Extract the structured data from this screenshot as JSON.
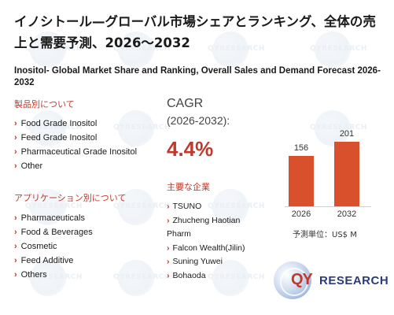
{
  "title": "イノシトール—グローバル市場シェアとランキング、全体の売上と需要予測、2026～2032",
  "subtitle": "Inositol- Global Market Share and Ranking, Overall Sales and Demand Forecast 2026-2032",
  "product_section": {
    "heading": "製品別について",
    "items": [
      "Food Grade Inositol",
      "Feed Grade Inositol",
      "Pharmaceutical Grade Inositol",
      "Other"
    ]
  },
  "application_section": {
    "heading": "アプリケーション別について",
    "items": [
      "Pharmaceuticals",
      "Food & Beverages",
      "Cosmetic",
      "Feed Additive",
      "Others"
    ]
  },
  "cagr": {
    "label": "CAGR",
    "period": "(2026-2032):",
    "value": "4.4%"
  },
  "companies": {
    "heading": "主要な企業",
    "items": [
      "TSUNO",
      "Zhucheng Haotian Pharm",
      "Falcon Wealth(Jilin)",
      "Suning Yuwei",
      "Bohaoda"
    ]
  },
  "chart_data": {
    "type": "bar",
    "categories": [
      "2026",
      "2032"
    ],
    "values": [
      156,
      201
    ],
    "data_labels": [
      "156",
      "201"
    ],
    "unit": "予測単位：US$ M",
    "color": "#d9512c"
  },
  "logo": {
    "qy": "QY",
    "research": "RESEARCH"
  },
  "watermark_text": "QYRESEARCH",
  "colors": {
    "accent": "#c0392b",
    "bar": "#d9512c",
    "logo_blue": "#2a3b7a"
  }
}
